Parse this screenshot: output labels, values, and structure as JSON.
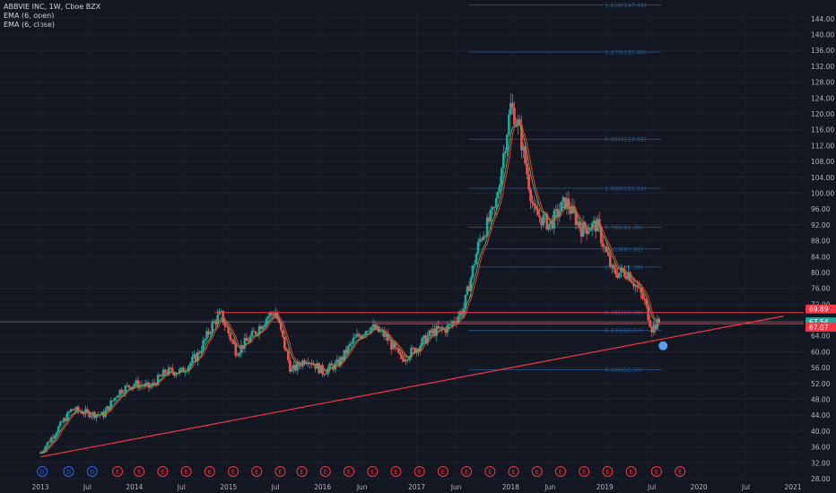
{
  "chart_data": {
    "type": "candlestick",
    "legend": [
      {
        "label": "ABBVIE INC, 1W, Cboe BZX"
      },
      {
        "label": "EMA (6, open)"
      },
      {
        "label": "EMA (6, close)"
      }
    ],
    "y_ticks": [
      "144.00",
      "140.00",
      "136.00",
      "132.00",
      "128.00",
      "124.00",
      "120.00",
      "116.00",
      "112.00",
      "108.00",
      "104.00",
      "100.00",
      "96.00",
      "92.00",
      "88.00",
      "84.00",
      "80.00",
      "76.00",
      "72.00",
      "68.00",
      "64.00",
      "60.00",
      "56.00",
      "52.00",
      "48.00",
      "44.00",
      "40.00",
      "36.00",
      "32.00",
      "28.00"
    ],
    "x_ticks": [
      "2013",
      "Jul",
      "2014",
      "Jul",
      "2015",
      "Jul",
      "2016",
      "Jun",
      "2017",
      "Jun",
      "2018",
      "Jun",
      "2019",
      "Jul",
      "2020",
      "Jul",
      "2021"
    ],
    "ylim": [
      28,
      146
    ],
    "price_labels": [
      {
        "text": "69.89",
        "value": 69.89,
        "color": "#f23645"
      },
      {
        "text": "67.54",
        "value": 67.54,
        "color": "#26a69a"
      },
      {
        "text": "67.07",
        "value": 67.07,
        "color": "#f23645"
      }
    ],
    "fib_levels": [
      {
        "label": "1.618(147.49)",
        "value": 147.49
      },
      {
        "label": "1.272(135.60)",
        "value": 135.6
      },
      {
        "label": "0.000(113.62)",
        "value": 113.62
      },
      {
        "label": "1.000(101.24)",
        "value": 101.24
      },
      {
        "label": "0.786(91.38)",
        "value": 91.38
      },
      {
        "label": "0.618(85.92)",
        "value": 85.92
      },
      {
        "label": "0.500(81.38)",
        "value": 81.38
      },
      {
        "label": "0.382(69.89)",
        "value": 69.89
      },
      {
        "label": "0.236(65.37)",
        "value": 65.37
      },
      {
        "label": "0.000(55.50)",
        "value": 55.5
      }
    ],
    "events": [
      {
        "letter": "D",
        "kind": "dividend"
      },
      {
        "letter": "D",
        "kind": "dividend"
      },
      {
        "letter": "D",
        "kind": "dividend"
      },
      {
        "letter": "E",
        "kind": "earnings"
      },
      {
        "letter": "E",
        "kind": "earnings"
      },
      {
        "letter": "E",
        "kind": "earnings"
      },
      {
        "letter": "E",
        "kind": "earnings"
      },
      {
        "letter": "E",
        "kind": "earnings"
      },
      {
        "letter": "E",
        "kind": "earnings"
      },
      {
        "letter": "E",
        "kind": "earnings"
      },
      {
        "letter": "E",
        "kind": "earnings"
      },
      {
        "letter": "E",
        "kind": "earnings"
      },
      {
        "letter": "E",
        "kind": "earnings"
      },
      {
        "letter": "E",
        "kind": "earnings"
      },
      {
        "letter": "E",
        "kind": "earnings"
      },
      {
        "letter": "E",
        "kind": "earnings"
      },
      {
        "letter": "E",
        "kind": "earnings"
      },
      {
        "letter": "E",
        "kind": "earnings"
      },
      {
        "letter": "E",
        "kind": "earnings"
      },
      {
        "letter": "E",
        "kind": "earnings"
      },
      {
        "letter": "E",
        "kind": "earnings"
      },
      {
        "letter": "E",
        "kind": "earnings"
      },
      {
        "letter": "E",
        "kind": "earnings"
      },
      {
        "letter": "E",
        "kind": "earnings"
      },
      {
        "letter": "E",
        "kind": "earnings"
      },
      {
        "letter": "E",
        "kind": "earnings"
      },
      {
        "letter": "E",
        "kind": "earnings"
      },
      {
        "letter": "E",
        "kind": "earnings"
      }
    ],
    "series": [
      {
        "name": "EMA (6, open)",
        "color": "#f23645"
      },
      {
        "name": "EMA (6, close)",
        "color": "#4caf50"
      }
    ],
    "colors": {
      "up": "#26a69a",
      "down": "#ef5350",
      "background": "#131722",
      "trendline": "#f23645",
      "fib": "#2a5a8a"
    },
    "weekly_close_path": [
      [
        "2013-01",
        34.5
      ],
      [
        "2013-03",
        40.0
      ],
      [
        "2013-05",
        45.5
      ],
      [
        "2013-07",
        44.5
      ],
      [
        "2013-09",
        44.0
      ],
      [
        "2013-11",
        50.0
      ],
      [
        "2014-01",
        52.0
      ],
      [
        "2014-03",
        51.0
      ],
      [
        "2014-05",
        55.0
      ],
      [
        "2014-07",
        55.0
      ],
      [
        "2014-09",
        59.0
      ],
      [
        "2014-11",
        67.0
      ],
      [
        "2014-12",
        69.5
      ],
      [
        "2015-02",
        60.0
      ],
      [
        "2015-04",
        64.0
      ],
      [
        "2015-06",
        69.0
      ],
      [
        "2015-07",
        70.0
      ],
      [
        "2015-09",
        55.0
      ],
      [
        "2015-11",
        58.5
      ],
      [
        "2016-01",
        55.0
      ],
      [
        "2016-03",
        57.0
      ],
      [
        "2016-05",
        63.0
      ],
      [
        "2016-07",
        66.5
      ],
      [
        "2016-09",
        64.0
      ],
      [
        "2016-11",
        58.0
      ],
      [
        "2017-01",
        61.0
      ],
      [
        "2017-03",
        65.0
      ],
      [
        "2017-05",
        66.0
      ],
      [
        "2017-07",
        71.0
      ],
      [
        "2017-09",
        88.0
      ],
      [
        "2017-11",
        96.0
      ],
      [
        "2018-01",
        122.0
      ],
      [
        "2018-02",
        117.0
      ],
      [
        "2018-04",
        95.0
      ],
      [
        "2018-06",
        92.0
      ],
      [
        "2018-08",
        98.0
      ],
      [
        "2018-10",
        91.0
      ],
      [
        "2018-12",
        92.0
      ],
      [
        "2019-02",
        80.0
      ],
      [
        "2019-04",
        80.0
      ],
      [
        "2019-06",
        73.0
      ],
      [
        "2019-07",
        66.0
      ],
      [
        "2019-08",
        67.5
      ]
    ]
  }
}
